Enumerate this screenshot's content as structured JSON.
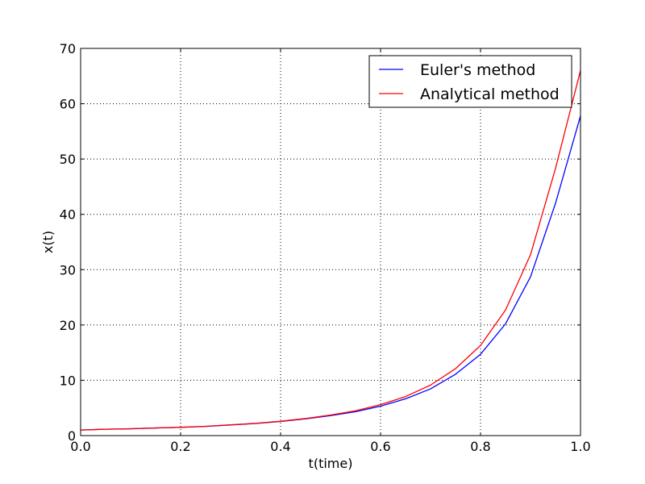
{
  "chart_data": {
    "type": "line",
    "title": "",
    "xlabel": "t(time)",
    "ylabel": "x(t)",
    "xlim": [
      0.0,
      1.0
    ],
    "ylim": [
      0,
      70
    ],
    "xticks": [
      0.0,
      0.2,
      0.4,
      0.6,
      0.8,
      1.0
    ],
    "xtick_labels": [
      "0.0",
      "0.2",
      "0.4",
      "0.6",
      "0.8",
      "1.0"
    ],
    "yticks": [
      0,
      10,
      20,
      30,
      40,
      50,
      60,
      70
    ],
    "ytick_labels": [
      "0",
      "10",
      "20",
      "30",
      "40",
      "50",
      "60",
      "70"
    ],
    "grid": true,
    "legend_position": "top-right",
    "x": [
      0.0,
      0.05,
      0.1,
      0.15,
      0.2,
      0.25,
      0.3,
      0.35,
      0.4,
      0.45,
      0.5,
      0.55,
      0.6,
      0.65,
      0.7,
      0.75,
      0.8,
      0.85,
      0.9,
      0.95,
      1.0
    ],
    "series": [
      {
        "name": "Euler's method",
        "color": "#0000ff",
        "values": [
          1.0,
          1.15,
          1.23,
          1.38,
          1.49,
          1.66,
          1.92,
          2.19,
          2.55,
          3.02,
          3.61,
          4.32,
          5.32,
          6.65,
          8.45,
          11.1,
          14.7,
          20.2,
          28.7,
          42.0,
          57.8
        ]
      },
      {
        "name": "Analytical method",
        "color": "#ff0000",
        "values": [
          1.0,
          1.15,
          1.24,
          1.39,
          1.5,
          1.68,
          1.94,
          2.22,
          2.6,
          3.09,
          3.72,
          4.49,
          5.6,
          7.06,
          9.13,
          12.1,
          16.3,
          22.7,
          32.7,
          48.3,
          66.0
        ]
      }
    ]
  }
}
